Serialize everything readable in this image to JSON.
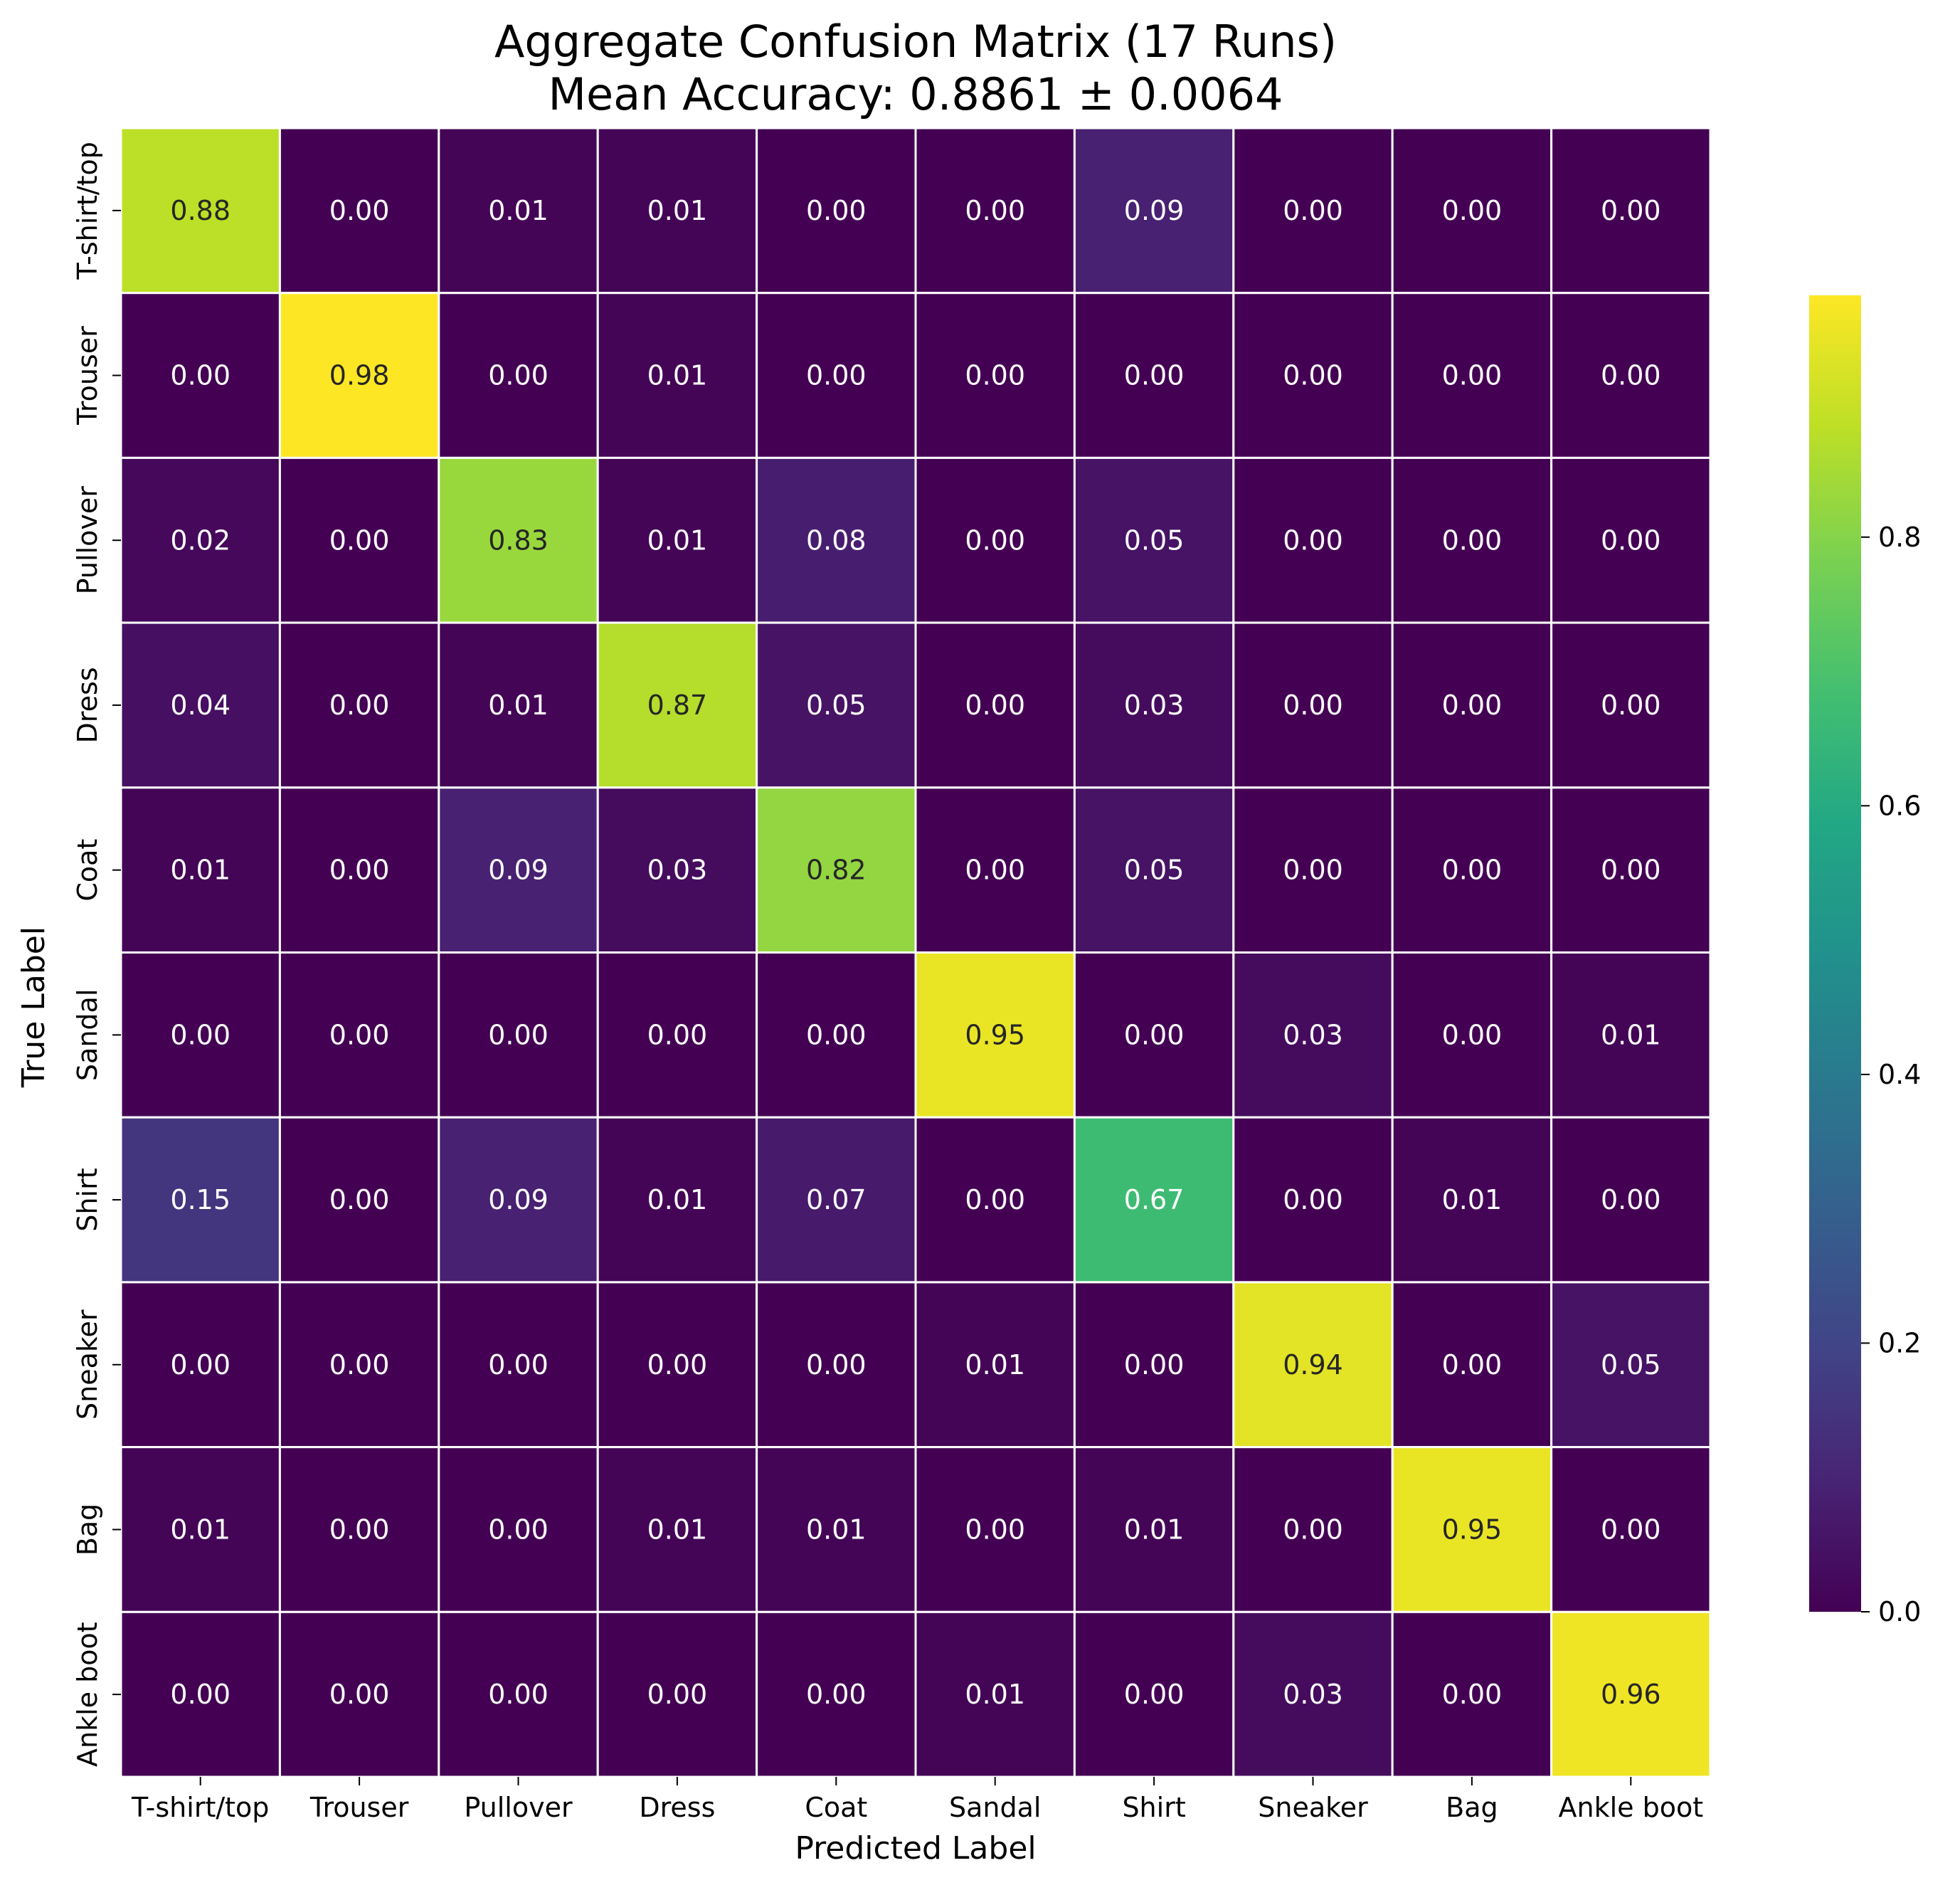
{
  "chart_data": {
    "type": "heatmap",
    "title": "Aggregate Confusion Matrix (17 Runs)",
    "subtitle": "Mean Accuracy: 0.8861 ± 0.0064",
    "xlabel": "Predicted Label",
    "ylabel": "True Label",
    "x_categories": [
      "T-shirt/top",
      "Trouser",
      "Pullover",
      "Dress",
      "Coat",
      "Sandal",
      "Shirt",
      "Sneaker",
      "Bag",
      "Ankle boot"
    ],
    "y_categories": [
      "T-shirt/top",
      "Trouser",
      "Pullover",
      "Dress",
      "Coat",
      "Sandal",
      "Shirt",
      "Sneaker",
      "Bag",
      "Ankle boot"
    ],
    "values": [
      [
        0.88,
        0.0,
        0.01,
        0.01,
        0.0,
        0.0,
        0.09,
        0.0,
        0.0,
        0.0
      ],
      [
        0.0,
        0.98,
        0.0,
        0.01,
        0.0,
        0.0,
        0.0,
        0.0,
        0.0,
        0.0
      ],
      [
        0.02,
        0.0,
        0.83,
        0.01,
        0.08,
        0.0,
        0.05,
        0.0,
        0.0,
        0.0
      ],
      [
        0.04,
        0.0,
        0.01,
        0.87,
        0.05,
        0.0,
        0.03,
        0.0,
        0.0,
        0.0
      ],
      [
        0.01,
        0.0,
        0.09,
        0.03,
        0.82,
        0.0,
        0.05,
        0.0,
        0.0,
        0.0
      ],
      [
        0.0,
        0.0,
        0.0,
        0.0,
        0.0,
        0.95,
        0.0,
        0.03,
        0.0,
        0.01
      ],
      [
        0.15,
        0.0,
        0.09,
        0.01,
        0.07,
        0.0,
        0.67,
        0.0,
        0.01,
        0.0
      ],
      [
        0.0,
        0.0,
        0.0,
        0.0,
        0.0,
        0.01,
        0.0,
        0.94,
        0.0,
        0.05
      ],
      [
        0.01,
        0.0,
        0.0,
        0.01,
        0.01,
        0.0,
        0.01,
        0.0,
        0.95,
        0.0
      ],
      [
        0.0,
        0.0,
        0.0,
        0.0,
        0.0,
        0.01,
        0.0,
        0.03,
        0.0,
        0.96
      ]
    ],
    "value_format": "0.00",
    "colormap": "viridis",
    "color_range": [
      0.0,
      0.98
    ],
    "colorbar_ticks": [
      "0.0",
      "0.2",
      "0.4",
      "0.6",
      "0.8"
    ],
    "colorbar_tick_values": [
      0.0,
      0.2,
      0.4,
      0.6,
      0.8
    ],
    "colorbar_position": "right",
    "cell_border_color": "#ffffff",
    "light_text_color": "#ffffff",
    "dark_text_color": "#262626",
    "grid": false
  }
}
